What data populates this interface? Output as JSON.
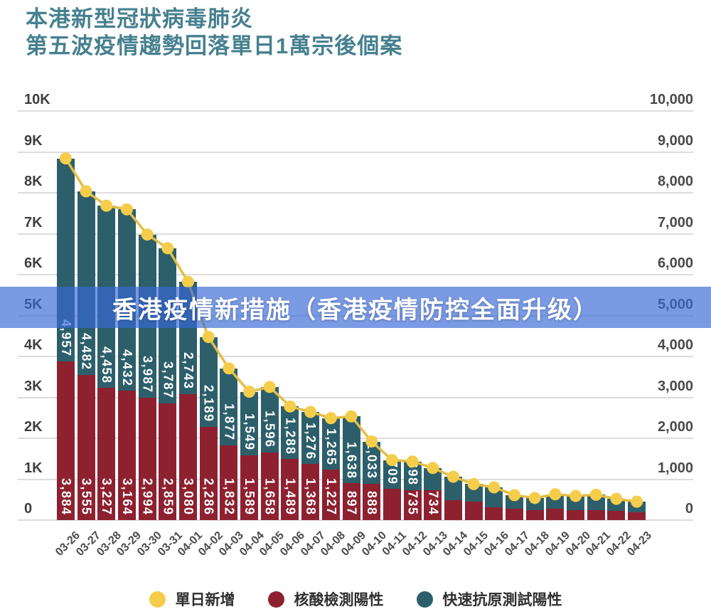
{
  "title": {
    "line1": "本港新型冠狀病毒肺炎",
    "line2": "第五波疫情趨勢回落單日1萬宗後個案"
  },
  "overlay_banner": {
    "text": "香港疫情新措施（香港疫情防控全面升级）"
  },
  "legend": {
    "items": [
      {
        "label": "單日新增",
        "color": "#f6cd4a",
        "shape": "circle"
      },
      {
        "label": "核酸檢測陽性",
        "color": "#8d2130",
        "shape": "circle"
      },
      {
        "label": "快速抗原測試陽性",
        "color": "#2d5f6b",
        "shape": "circle"
      }
    ]
  },
  "colors": {
    "background": "#ffffff",
    "title_text": "#46808f",
    "teal_bar": "#2d5f6b",
    "red_bar": "#8d2130",
    "yellow_dot": "#f6cd4a",
    "line": "#e3bd45",
    "grid": "#dcdcdc",
    "axis_text_left": "#3f3f3f",
    "axis_text_right": "#4a4a4a",
    "x_tick_text": "#4c4c4c",
    "legend_text": "#2f2f2f",
    "banner_bg": "rgba(57,105,213,0.67)",
    "banner_text": "#ffffff",
    "bar_label_text": "#ffffff"
  },
  "chart_data": {
    "type": "bar",
    "variant": "stacked-bars-with-line-overlay",
    "title": "本港新型冠狀病毒肺炎第五波疫情趨勢回落單日1萬宗後個案",
    "xlabel": "",
    "ylabel": "",
    "ylim": [
      0,
      10000
    ],
    "grid": true,
    "legend_position": "bottom",
    "categories": [
      "03-26",
      "03-27",
      "03-28",
      "03-29",
      "03-30",
      "03-31",
      "04-01",
      "04-02",
      "04-03",
      "04-04",
      "04-05",
      "04-06",
      "04-07",
      "04-08",
      "04-09",
      "04-10",
      "04-11",
      "04-12",
      "04-13",
      "04-14",
      "04-15",
      "04-16",
      "04-17",
      "04-18",
      "04-19",
      "04-20",
      "04-21",
      "04-22",
      "04-23"
    ],
    "y_ticks": {
      "values": [
        0,
        1000,
        2000,
        3000,
        4000,
        5000,
        6000,
        7000,
        8000,
        9000,
        10000
      ],
      "left_labels": [
        "0",
        "1K",
        "2K",
        "3K",
        "4K",
        "5K",
        "6K",
        "7K",
        "8K",
        "9K",
        "10K"
      ],
      "right_labels": [
        "0",
        "1,000",
        "2,000",
        "3,000",
        "4,000",
        "5,000",
        "6,000",
        "7,000",
        "8,000",
        "9,000",
        "10,000"
      ]
    },
    "series": [
      {
        "name": "核酸檢測陽性",
        "role": "bar-bottom",
        "color": "#8d2130",
        "values": [
          3884,
          3555,
          3227,
          3164,
          2994,
          2859,
          3080,
          2286,
          1832,
          1589,
          1658,
          1489,
          1368,
          1227,
          897,
          888,
          758,
          735,
          734,
          490,
          450,
          310,
          280,
          240,
          280,
          240,
          240,
          225,
          190
        ],
        "data_labels": [
          "3,884",
          "3,555",
          "3,227",
          "3,164",
          "2,994",
          "2,859",
          "3,080",
          "2,286",
          "1,832",
          "1,589",
          "1,658",
          "1,489",
          "1,368",
          "1,227",
          "897",
          "888",
          null,
          "735",
          "734",
          null,
          null,
          null,
          null,
          null,
          null,
          null,
          null,
          null,
          null
        ]
      },
      {
        "name": "快速抗原測試陽性",
        "role": "bar-top",
        "color": "#2d5f6b",
        "values": [
          4957,
          4482,
          4458,
          4432,
          3987,
          3787,
          2743,
          2189,
          1877,
          1549,
          1596,
          1288,
          1276,
          1265,
          1638,
          1033,
          709,
          698,
          540,
          570,
          430,
          490,
          330,
          300,
          350,
          350,
          380,
          295,
          260
        ],
        "data_labels": [
          "4,957",
          "4,482",
          "4,458",
          "4,432",
          "3,987",
          "3,787",
          "2,743",
          "2,189",
          "1,877",
          "1,549",
          "1,596",
          "1,288",
          "1,276",
          "1,265",
          "1,638",
          "1,033",
          "709",
          "698",
          null,
          null,
          null,
          null,
          null,
          null,
          null,
          null,
          null,
          null,
          null
        ]
      },
      {
        "name": "單日新增",
        "role": "line",
        "color": "#f6cd4a",
        "values": [
          8841,
          8037,
          7685,
          7596,
          6981,
          6646,
          5823,
          4475,
          3709,
          3138,
          3254,
          2777,
          2644,
          2492,
          2535,
          1921,
          1467,
          1433,
          1274,
          1060,
          880,
          800,
          610,
          540,
          630,
          590,
          620,
          520,
          450
        ]
      }
    ]
  }
}
